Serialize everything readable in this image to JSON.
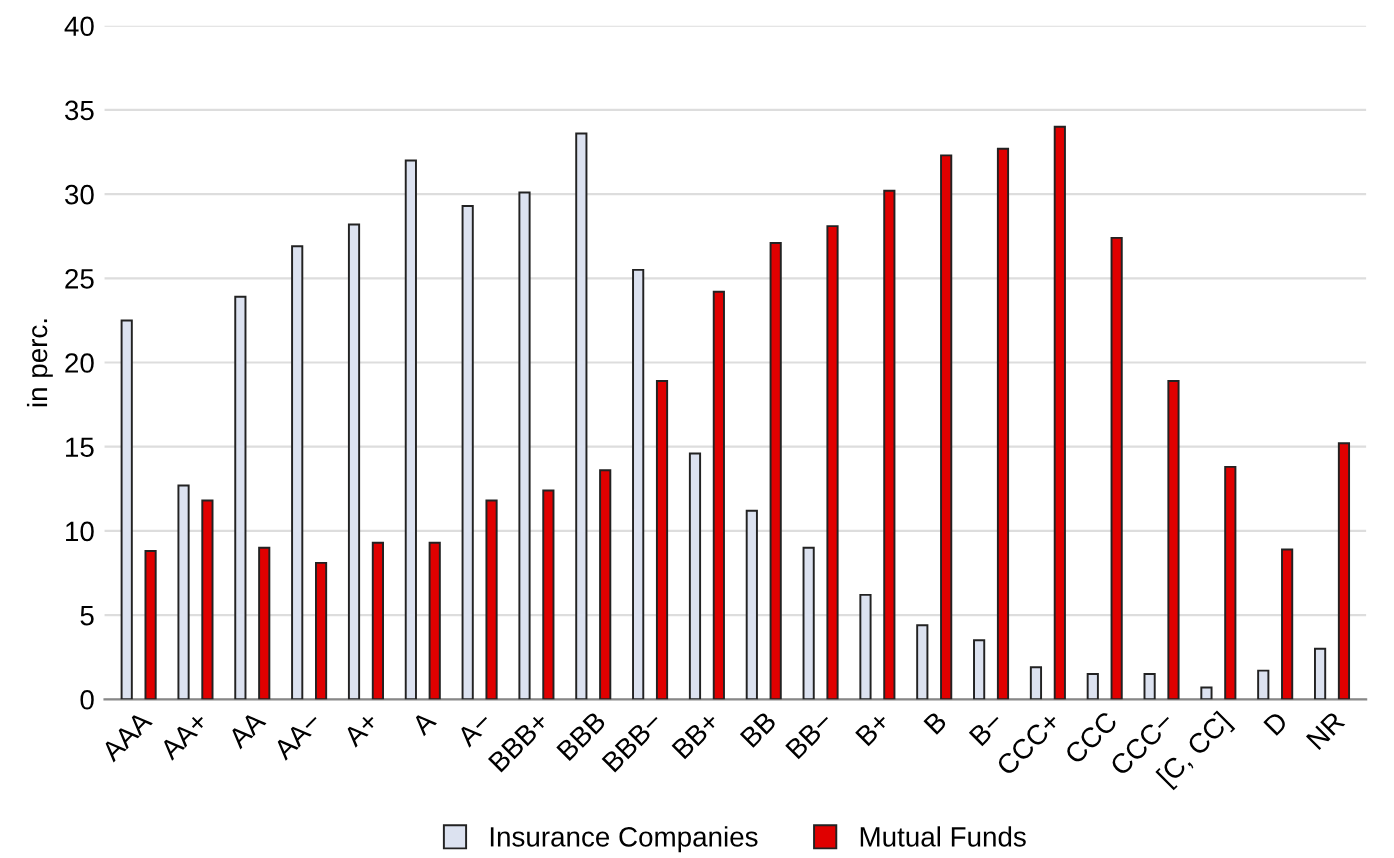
{
  "chart_data": {
    "type": "bar",
    "ylabel": "in perc.",
    "categories": [
      "AAA",
      "AA+",
      "AA",
      "AA−",
      "A+",
      "A",
      "A−",
      "BBB+",
      "BBB",
      "BBB−",
      "BB+",
      "BB",
      "BB−",
      "B+",
      "B",
      "B−",
      "CCC+",
      "CCC",
      "CCC−",
      "[C, CC]",
      "D",
      "NR"
    ],
    "series": [
      {
        "name": "Insurance Companies",
        "color": "#dce2f0",
        "values": [
          22.5,
          12.7,
          23.9,
          26.9,
          28.2,
          32.0,
          29.3,
          30.1,
          33.6,
          25.5,
          14.6,
          11.2,
          9.0,
          6.2,
          4.4,
          3.5,
          1.9,
          1.5,
          1.5,
          0.7,
          1.7,
          3.0
        ]
      },
      {
        "name": "Mutual Funds",
        "color": "#e00000",
        "values": [
          8.8,
          11.8,
          9.0,
          8.1,
          9.3,
          9.3,
          11.8,
          12.4,
          13.6,
          18.9,
          24.2,
          27.1,
          28.1,
          30.2,
          32.3,
          32.7,
          34.0,
          27.4,
          18.9,
          13.8,
          8.9,
          15.2
        ]
      }
    ],
    "ylim": [
      0,
      40
    ],
    "yticks": [
      0,
      5,
      10,
      15,
      20,
      25,
      30,
      35,
      40
    ],
    "grid": "y",
    "legend": "bottom"
  }
}
